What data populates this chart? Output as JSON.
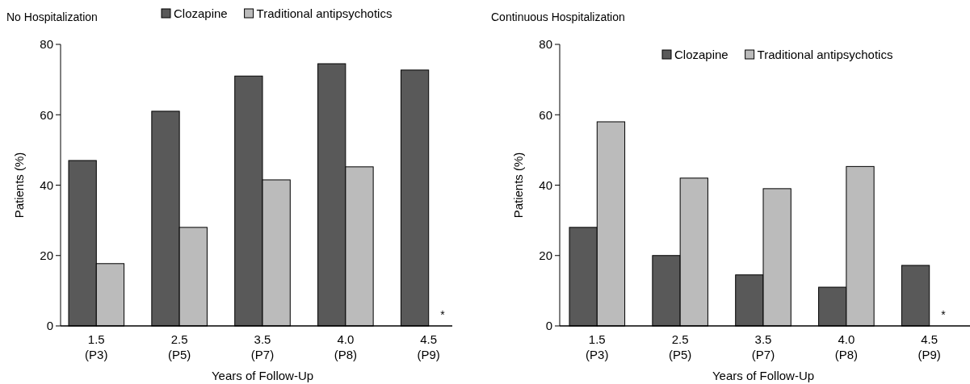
{
  "chart_data": [
    {
      "type": "bar",
      "title": "No Hospitalization",
      "xlabel": "Years of Follow-Up",
      "ylabel": "Patients (%)",
      "categories": [
        "1.5\n(P3)",
        "2.5\n(P5)",
        "3.5\n(P7)",
        "4.0\n(P8)",
        "4.5\n(P9)"
      ],
      "series": [
        {
          "name": "Clozapine",
          "color": "#595959",
          "values": [
            47,
            61,
            71,
            74.5,
            72.7
          ]
        },
        {
          "name": "Traditional antipsychotics",
          "color": "#bbbbbb",
          "values": [
            17.7,
            28,
            41.5,
            45.2,
            null
          ]
        }
      ],
      "ylim": [
        0,
        80
      ],
      "yticks": [
        0,
        20,
        40,
        60,
        80
      ],
      "legend": "top",
      "grid": false,
      "annotations": [
        {
          "text": "*",
          "x": "4.5\n(P9)",
          "y": 2
        }
      ]
    },
    {
      "type": "bar",
      "title": "Continuous Hospitalization",
      "xlabel": "Years of Follow-Up",
      "ylabel": "Patients (%)",
      "categories": [
        "1.5\n(P3)",
        "2.5\n(P5)",
        "3.5\n(P7)",
        "4.0\n(P8)",
        "4.5\n(P9)"
      ],
      "series": [
        {
          "name": "Clozapine",
          "color": "#595959",
          "values": [
            28,
            20,
            14.5,
            11,
            17.2
          ]
        },
        {
          "name": "Traditional antipsychotics",
          "color": "#bbbbbb",
          "values": [
            58,
            42,
            39,
            45.3,
            null
          ]
        }
      ],
      "ylim": [
        0,
        80
      ],
      "yticks": [
        0,
        20,
        40,
        60,
        80
      ],
      "legend": "top right",
      "grid": false,
      "annotations": [
        {
          "text": "*",
          "x": "4.5\n(P9)",
          "y": 2
        }
      ]
    }
  ]
}
